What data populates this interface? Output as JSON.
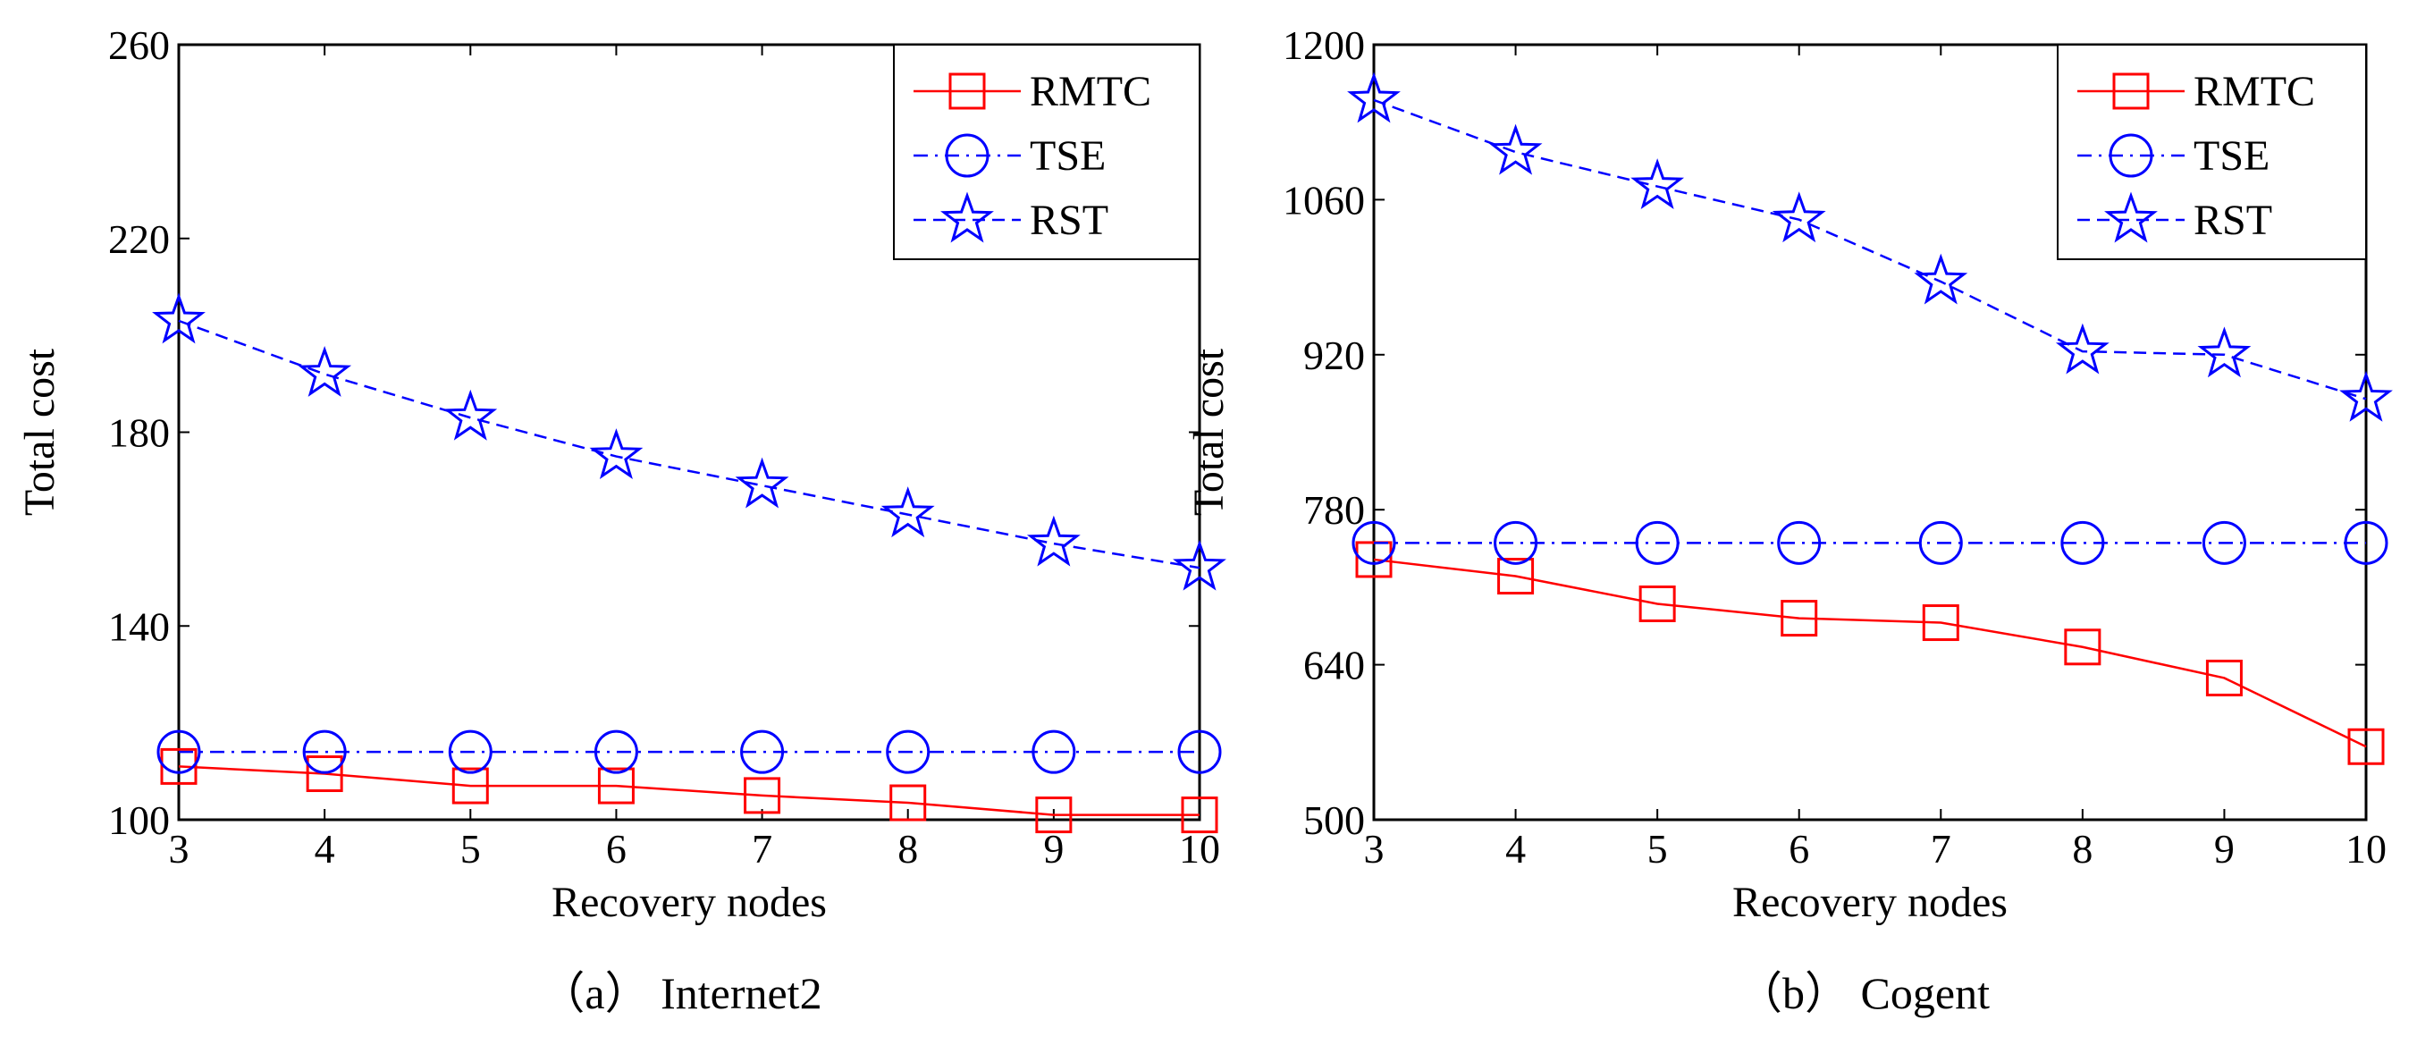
{
  "chart_data": [
    {
      "type": "line",
      "caption": "（a） Internet2",
      "xlabel": "Recovery nodes",
      "ylabel": "Total cost",
      "x": [
        3,
        4,
        5,
        6,
        7,
        8,
        9,
        10
      ],
      "xlim": [
        3,
        10
      ],
      "ylim": [
        100,
        260
      ],
      "yticks": [
        100,
        140,
        180,
        220,
        260
      ],
      "xticks": [
        3,
        4,
        5,
        6,
        7,
        8,
        9,
        10
      ],
      "legend_position": "top-right",
      "series": [
        {
          "name": "RMTC",
          "color": "#ff0000",
          "marker": "square",
          "dash": "solid",
          "values": [
            111,
            109.5,
            107,
            107,
            105,
            103.5,
            101,
            101
          ]
        },
        {
          "name": "TSE",
          "color": "#0000ff",
          "marker": "circle",
          "dash": "dashdot",
          "values": [
            114,
            114,
            114,
            114,
            114,
            114,
            114,
            114
          ]
        },
        {
          "name": "RST",
          "color": "#0000ff",
          "marker": "star",
          "dash": "dashed",
          "values": [
            203,
            192,
            183,
            175,
            169,
            163,
            157,
            152
          ]
        }
      ]
    },
    {
      "type": "line",
      "caption": "（b） Cogent",
      "xlabel": "Recovery nodes",
      "ylabel": "Total cost",
      "x": [
        3,
        4,
        5,
        6,
        7,
        8,
        9,
        10
      ],
      "xlim": [
        3,
        10
      ],
      "ylim": [
        500,
        1200
      ],
      "yticks": [
        500,
        640,
        780,
        920,
        1060,
        1200
      ],
      "xticks": [
        3,
        4,
        5,
        6,
        7,
        8,
        9,
        10
      ],
      "legend_position": "top-right",
      "series": [
        {
          "name": "RMTC",
          "color": "#ff0000",
          "marker": "square",
          "dash": "solid",
          "values": [
            735,
            720,
            695,
            682,
            678,
            656,
            628,
            566
          ]
        },
        {
          "name": "TSE",
          "color": "#0000ff",
          "marker": "circle",
          "dash": "dashdot",
          "values": [
            750,
            750,
            750,
            750,
            750,
            750,
            750,
            750
          ]
        },
        {
          "name": "RST",
          "color": "#0000ff",
          "marker": "star",
          "dash": "dashed",
          "values": [
            1150,
            1103,
            1072,
            1042,
            986,
            923,
            920,
            880
          ]
        }
      ]
    }
  ]
}
